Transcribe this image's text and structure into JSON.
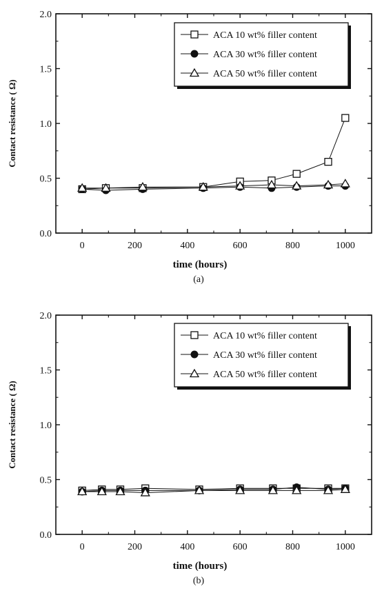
{
  "colors": {
    "ink": "#111111",
    "background": "#ffffff"
  },
  "chart_data": [
    {
      "type": "line",
      "caption": "(a)",
      "xlabel": "time (hours)",
      "ylabel": "Contact resistance ( Ω)",
      "xlim": [
        -100,
        1100
      ],
      "ylim": [
        0.0,
        2.0
      ],
      "xticks": [
        0,
        200,
        400,
        600,
        800,
        1000
      ],
      "yticks": [
        0.0,
        0.5,
        1.0,
        1.5,
        2.0
      ],
      "xtick_labels": [
        "0",
        "200",
        "400",
        "600",
        "800",
        "1000"
      ],
      "ytick_labels": [
        "0.0",
        "0.5",
        "1.0",
        "1.5",
        "2.0"
      ],
      "legend_position": "top-right",
      "grid": false,
      "series": [
        {
          "name": "ACA 10 wt% filler content",
          "marker": "open-square",
          "x": [
            0,
            90,
            230,
            460,
            600,
            720,
            815,
            935,
            1000
          ],
          "y": [
            0.4,
            0.41,
            0.41,
            0.42,
            0.47,
            0.48,
            0.54,
            0.65,
            1.05
          ]
        },
        {
          "name": "ACA 30 wt% filler content",
          "marker": "filled-circle",
          "x": [
            0,
            90,
            230,
            460,
            600,
            720,
            815,
            935,
            1000
          ],
          "y": [
            0.4,
            0.39,
            0.4,
            0.41,
            0.42,
            0.41,
            0.42,
            0.43,
            0.43
          ]
        },
        {
          "name": "ACA 50 wt% filler content",
          "marker": "open-triangle",
          "x": [
            0,
            90,
            230,
            460,
            600,
            720,
            815,
            935,
            1000
          ],
          "y": [
            0.41,
            0.41,
            0.42,
            0.42,
            0.43,
            0.44,
            0.43,
            0.44,
            0.45
          ]
        }
      ]
    },
    {
      "type": "line",
      "caption": "(b)",
      "xlabel": "time (hours)",
      "ylabel": "Contact resistance ( Ω)",
      "xlim": [
        -100,
        1100
      ],
      "ylim": [
        0.0,
        2.0
      ],
      "xticks": [
        0,
        200,
        400,
        600,
        800,
        1000
      ],
      "yticks": [
        0.0,
        0.5,
        1.0,
        1.5,
        2.0
      ],
      "xtick_labels": [
        "0",
        "200",
        "400",
        "600",
        "800",
        "1000"
      ],
      "ytick_labels": [
        "0.0",
        "0.5",
        "1.0",
        "1.5",
        "2.0"
      ],
      "legend_position": "top-right",
      "grid": false,
      "series": [
        {
          "name": "ACA 10 wt% filler content",
          "marker": "open-square",
          "x": [
            0,
            75,
            145,
            240,
            445,
            600,
            725,
            815,
            935,
            1000
          ],
          "y": [
            0.4,
            0.41,
            0.41,
            0.42,
            0.41,
            0.42,
            0.42,
            0.42,
            0.42,
            0.42
          ]
        },
        {
          "name": "ACA 30 wt% filler content",
          "marker": "filled-circle",
          "x": [
            0,
            75,
            145,
            240,
            445,
            600,
            725,
            815,
            935,
            1000
          ],
          "y": [
            0.39,
            0.4,
            0.4,
            0.4,
            0.4,
            0.41,
            0.41,
            0.43,
            0.41,
            0.42
          ]
        },
        {
          "name": "ACA 50 wt% filler content",
          "marker": "open-triangle",
          "x": [
            0,
            75,
            145,
            240,
            445,
            600,
            725,
            815,
            935,
            1000
          ],
          "y": [
            0.39,
            0.39,
            0.39,
            0.38,
            0.4,
            0.4,
            0.4,
            0.4,
            0.4,
            0.41
          ]
        }
      ]
    }
  ]
}
